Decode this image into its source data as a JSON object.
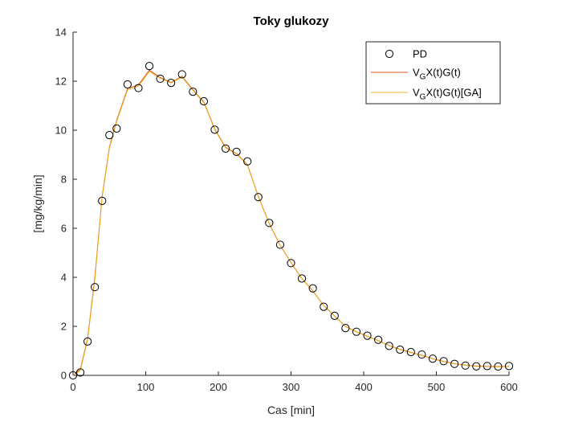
{
  "chart_data": {
    "type": "line",
    "title": "Toky glukozy",
    "xlabel": "Cas [min]",
    "ylabel": "[mg/kg/min]",
    "xlim": [
      0,
      600
    ],
    "ylim": [
      0,
      14
    ],
    "xticks": [
      0,
      100,
      200,
      300,
      400,
      500,
      600
    ],
    "yticks": [
      0,
      2,
      4,
      6,
      8,
      10,
      12,
      14
    ],
    "grid": false,
    "legend_position": "top-right",
    "colors": {
      "model": "#D95319",
      "ga": "#EDB120",
      "marker": "#000000",
      "axis": "#262626"
    },
    "legend": [
      {
        "label": "PD",
        "label_main": "PD",
        "subscript": "",
        "label_rest": "",
        "style": "marker"
      },
      {
        "label": "VGX(t)G(t)",
        "label_main": "V",
        "subscript": "G",
        "label_rest": "X(t)G(t)",
        "style": "model"
      },
      {
        "label": "VGX(t)G(t)[GA]",
        "label_main": "V",
        "subscript": "G",
        "label_rest": "X(t)G(t)[GA]",
        "style": "ga"
      }
    ],
    "series": [
      {
        "name": "PD",
        "style": "marker",
        "x": [
          0,
          10,
          20,
          30,
          40,
          50,
          60,
          75,
          90,
          105,
          120,
          135,
          150,
          165,
          180,
          195,
          210,
          225,
          240,
          255,
          270,
          285,
          300,
          315,
          330,
          345,
          360,
          375,
          390,
          405,
          420,
          435,
          450,
          465,
          480,
          495,
          510,
          525,
          540,
          555,
          570,
          585,
          600
        ],
        "y": [
          0.0,
          0.12,
          1.38,
          3.6,
          7.12,
          9.8,
          10.07,
          11.87,
          11.72,
          12.62,
          12.1,
          11.93,
          12.28,
          11.57,
          11.18,
          10.02,
          9.25,
          9.12,
          8.73,
          7.27,
          6.22,
          5.33,
          4.58,
          3.95,
          3.55,
          2.8,
          2.43,
          1.93,
          1.78,
          1.62,
          1.45,
          1.2,
          1.05,
          0.95,
          0.85,
          0.68,
          0.58,
          0.47,
          0.4,
          0.37,
          0.38,
          0.36,
          0.38
        ]
      },
      {
        "name": "VGX(t)G(t)",
        "style": "model",
        "x": [
          0,
          10,
          20,
          30,
          40,
          50,
          60,
          75,
          90,
          105,
          120,
          135,
          150,
          165,
          180,
          195,
          210,
          225,
          240,
          255,
          270,
          285,
          300,
          315,
          330,
          345,
          360,
          375,
          390,
          405,
          420,
          435,
          450,
          465,
          480,
          495,
          510,
          525,
          540,
          555,
          570,
          585,
          600
        ],
        "y": [
          0.0,
          0.25,
          1.5,
          4.0,
          7.3,
          9.3,
          10.4,
          11.7,
          11.85,
          12.45,
          12.15,
          11.95,
          12.2,
          11.65,
          11.15,
          10.05,
          9.3,
          9.05,
          8.6,
          7.3,
          6.2,
          5.3,
          4.6,
          3.95,
          3.45,
          2.85,
          2.42,
          2.0,
          1.78,
          1.6,
          1.42,
          1.22,
          1.06,
          0.94,
          0.82,
          0.68,
          0.57,
          0.48,
          0.42,
          0.38,
          0.37,
          0.36,
          0.37
        ]
      },
      {
        "name": "VGX(t)G(t)[GA]",
        "style": "ga",
        "x": [
          0,
          10,
          20,
          30,
          40,
          50,
          60,
          75,
          90,
          105,
          120,
          135,
          150,
          165,
          180,
          195,
          210,
          225,
          240,
          255,
          270,
          285,
          300,
          315,
          330,
          345,
          360,
          375,
          390,
          405,
          420,
          435,
          450,
          465,
          480,
          495,
          510,
          525,
          540,
          555,
          570,
          585,
          600
        ],
        "y": [
          0.0,
          0.2,
          1.45,
          3.9,
          7.25,
          9.25,
          10.35,
          11.65,
          11.8,
          12.4,
          12.12,
          11.93,
          12.17,
          11.62,
          11.12,
          10.02,
          9.28,
          9.03,
          8.58,
          7.28,
          6.18,
          5.29,
          4.59,
          3.94,
          3.44,
          2.84,
          2.41,
          1.99,
          1.77,
          1.59,
          1.41,
          1.21,
          1.05,
          0.93,
          0.81,
          0.67,
          0.56,
          0.47,
          0.41,
          0.37,
          0.36,
          0.35,
          0.36
        ]
      }
    ]
  }
}
